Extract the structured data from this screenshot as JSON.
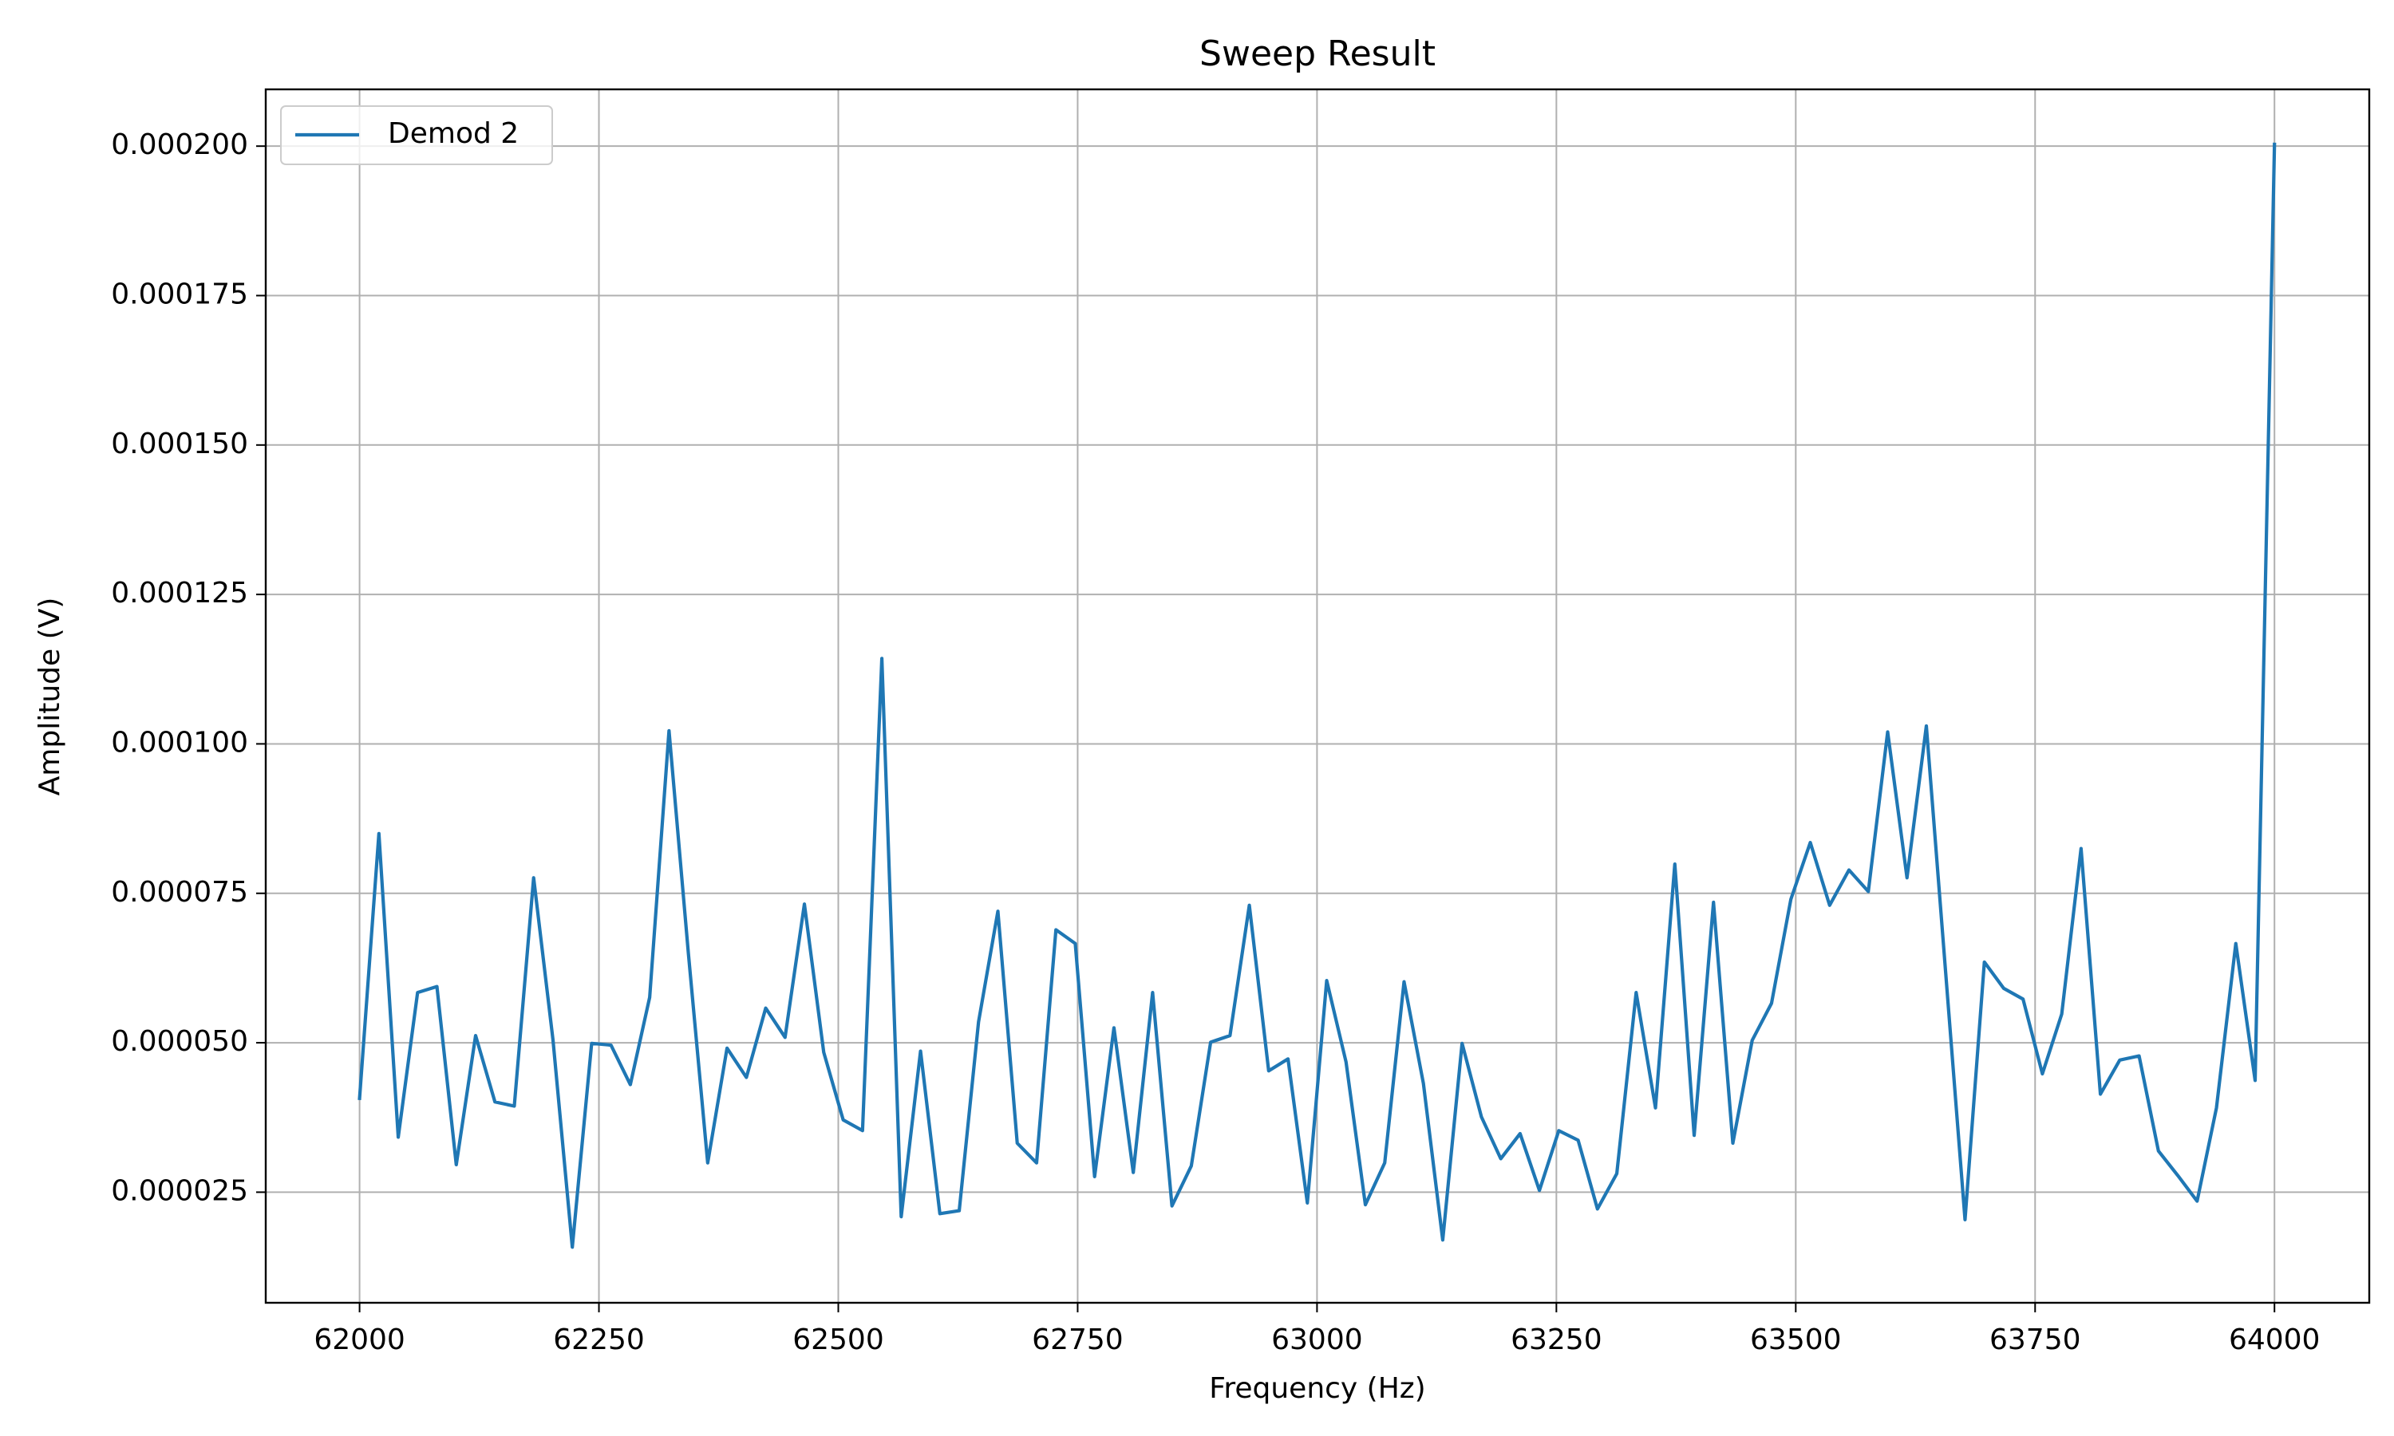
{
  "chart_data": {
    "type": "line",
    "title": "Sweep Result",
    "x_label": "Frequency (Hz)",
    "y_label": "Amplitude (V)",
    "x": [
      62000,
      62020.2,
      62040.4,
      62060.6,
      62080.8,
      62101.0,
      62121.2,
      62141.4,
      62161.6,
      62181.8,
      62202.0,
      62222.2,
      62242.4,
      62262.6,
      62282.8,
      62303.0,
      62323.2,
      62343.4,
      62363.6,
      62383.8,
      62404.0,
      62424.2,
      62444.4,
      62464.6,
      62484.8,
      62505.1,
      62525.3,
      62545.5,
      62565.7,
      62585.9,
      62606.1,
      62626.3,
      62646.5,
      62666.7,
      62686.9,
      62707.1,
      62727.3,
      62747.5,
      62767.7,
      62787.9,
      62808.1,
      62828.3,
      62848.5,
      62868.7,
      62888.9,
      62909.1,
      62929.3,
      62949.5,
      62969.7,
      62989.9,
      63010.1,
      63030.3,
      63050.5,
      63070.7,
      63090.9,
      63111.1,
      63131.3,
      63151.5,
      63171.7,
      63191.9,
      63212.1,
      63232.3,
      63252.5,
      63272.7,
      63292.9,
      63313.1,
      63333.3,
      63353.5,
      63373.7,
      63393.9,
      63414.1,
      63434.3,
      63454.5,
      63474.7,
      63494.9,
      63515.2,
      63535.4,
      63555.6,
      63575.8,
      63596.0,
      63616.2,
      63636.4,
      63656.6,
      63676.8,
      63697.0,
      63717.2,
      63737.4,
      63757.6,
      63777.8,
      63798.0,
      63818.2,
      63838.4,
      63858.6,
      63878.8,
      63899.0,
      63919.2,
      63939.4,
      63959.6,
      63979.8,
      64000
    ],
    "series": [
      {
        "name": "Demod 2",
        "color": "#1f77b4",
        "values": [
          4.07e-05,
          8.5e-05,
          3.42e-05,
          5.84e-05,
          5.94e-05,
          2.96e-05,
          5.12e-05,
          4.01e-05,
          3.94e-05,
          7.76e-05,
          5.05e-05,
          1.58e-05,
          4.99e-05,
          4.96e-05,
          4.3e-05,
          5.76e-05,
          0.0001022,
          6.5e-05,
          2.99e-05,
          4.91e-05,
          4.42e-05,
          5.58e-05,
          5.09e-05,
          7.32e-05,
          4.84e-05,
          3.71e-05,
          3.53e-05,
          0.0001143,
          2.09e-05,
          4.86e-05,
          2.14e-05,
          2.19e-05,
          5.35e-05,
          7.2e-05,
          3.32e-05,
          2.99e-05,
          6.89e-05,
          6.66e-05,
          2.76e-05,
          5.25e-05,
          2.83e-05,
          5.84e-05,
          2.27e-05,
          2.94e-05,
          5.01e-05,
          5.12e-05,
          7.3e-05,
          4.53e-05,
          4.73e-05,
          2.32e-05,
          6.04e-05,
          4.68e-05,
          2.29e-05,
          2.99e-05,
          6.02e-05,
          4.32e-05,
          1.7e-05,
          4.99e-05,
          3.76e-05,
          3.06e-05,
          3.48e-05,
          2.53e-05,
          3.53e-05,
          3.37e-05,
          2.22e-05,
          2.81e-05,
          5.84e-05,
          3.91e-05,
          7.99e-05,
          3.45e-05,
          7.35e-05,
          3.32e-05,
          5.04e-05,
          5.66e-05,
          7.4e-05,
          8.35e-05,
          7.3e-05,
          7.89e-05,
          7.53e-05,
          0.000102,
          7.76e-05,
          0.000103,
          6.17e-05,
          2.04e-05,
          6.35e-05,
          5.91e-05,
          5.73e-05,
          4.48e-05,
          5.48e-05,
          8.25e-05,
          4.14e-05,
          4.71e-05,
          4.78e-05,
          3.19e-05,
          2.78e-05,
          2.35e-05,
          3.91e-05,
          6.66e-05,
          4.37e-05,
          0.0002003
        ]
      }
    ],
    "xlim": [
      61902,
      64099
    ],
    "ylim": [
      6.5e-06,
      0.0002095
    ],
    "xticks": [
      62000,
      62250,
      62500,
      62750,
      63000,
      63250,
      63500,
      63750,
      64000
    ],
    "yticks": [
      {
        "value": 2.5e-05,
        "label": "0.000025"
      },
      {
        "value": 5e-05,
        "label": "0.000050"
      },
      {
        "value": 7.5e-05,
        "label": "0.000075"
      },
      {
        "value": 0.0001,
        "label": "0.000100"
      },
      {
        "value": 0.000125,
        "label": "0.000125"
      },
      {
        "value": 0.00015,
        "label": "0.000150"
      },
      {
        "value": 0.000175,
        "label": "0.000175"
      },
      {
        "value": 0.0002,
        "label": "0.000200"
      }
    ],
    "grid": true,
    "legend": "upper left"
  }
}
